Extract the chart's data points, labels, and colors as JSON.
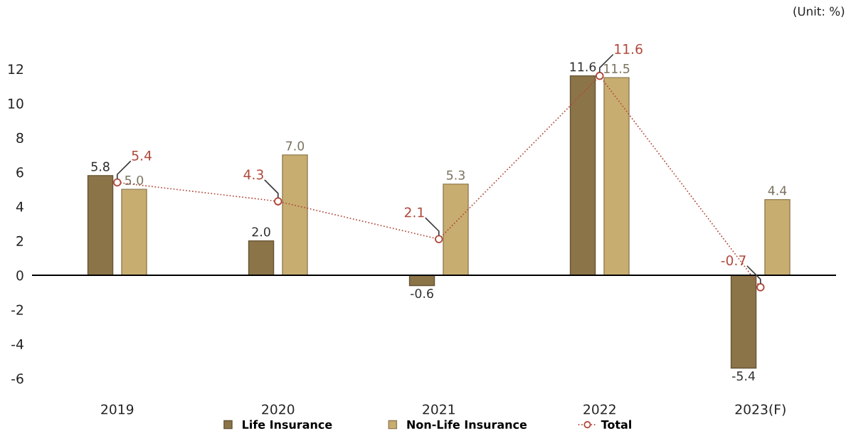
{
  "chart_data": {
    "type": "bar",
    "annotations": [
      "(Unit: %)"
    ],
    "categories": [
      "2019",
      "2020",
      "2021",
      "2022",
      "2023(F)"
    ],
    "series": [
      {
        "name": "Life Insurance",
        "color": "#8c7449",
        "values": [
          5.8,
          2.0,
          -0.6,
          11.6,
          -5.4
        ],
        "value_labels": [
          "5.8",
          "2.0",
          "-0.6",
          "11.6",
          "-5.4"
        ]
      },
      {
        "name": "Non-Life Insurance",
        "color": "#c8ad70",
        "values": [
          5.0,
          7.0,
          5.3,
          11.5,
          4.4
        ],
        "value_labels": [
          "5.0",
          "7.0",
          "5.3",
          "11.5",
          "4.4"
        ]
      },
      {
        "name": "Total",
        "type": "line",
        "color": "#b0483a",
        "marker": "circle",
        "line_style": "dotted",
        "values": [
          5.4,
          4.3,
          2.1,
          11.6,
          -0.7
        ],
        "value_labels": [
          "5.4",
          "4.3",
          "2.1",
          "11.6",
          "-0.7"
        ]
      }
    ],
    "ylim": [
      -6,
      12
    ],
    "yticks": [
      -6,
      -4,
      -2,
      0,
      2,
      4,
      6,
      8,
      10,
      12
    ],
    "grid": false,
    "legend": "bottom",
    "ref_lines": [
      {
        "axis": "y",
        "value": 0,
        "color": "#000000"
      }
    ]
  }
}
